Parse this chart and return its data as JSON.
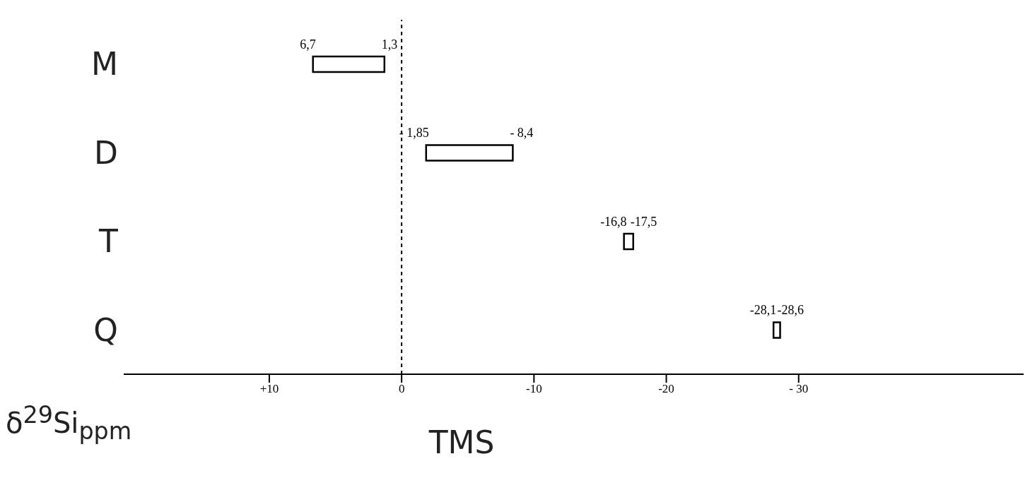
{
  "chart_data": {
    "type": "bar",
    "orientation": "horizontal",
    "xlabel": "δ$^{29}$Si$_{ppm}$",
    "categories": [
      "M",
      "D",
      "T",
      "Q"
    ],
    "base": [
      1.3,
      -8.4,
      -17.5,
      -28.6
    ],
    "values": [
      5.4,
      6.55,
      0.7,
      0.5
    ],
    "color": "#000000",
    "xlim": [
      21,
      -47
    ],
    "xticks": [
      {
        "value": 10,
        "label": "+10"
      },
      0,
      {
        "value": -10,
        "label": "-10"
      },
      {
        "value": -20,
        "label": "-20"
      },
      {
        "value": -30,
        "label": "- 30"
      }
    ],
    "ref_lines": [
      {
        "axis": "x",
        "value": 0,
        "label": "TMS",
        "color": "#000000",
        "line_style": "dashed"
      }
    ],
    "annotations": [
      {
        "text": "6,7",
        "x": 6.7,
        "y": "M"
      },
      {
        "text": "1,3",
        "x": 1.3,
        "y": "M"
      },
      {
        "text": "- 1,85",
        "x": -1.85,
        "y": "D"
      },
      {
        "text": "- 8,4",
        "x": -8.4,
        "y": "D"
      },
      {
        "text": "-16,8",
        "x": -16.8,
        "y": "T"
      },
      {
        "text": "-17,5",
        "x": -17.5,
        "y": "T"
      },
      {
        "text": "-28,1",
        "x": -28.1,
        "y": "Q"
      },
      {
        "text": "-28,6",
        "x": -28.6,
        "y": "Q"
      }
    ],
    "grid": false,
    "legend": false
  }
}
